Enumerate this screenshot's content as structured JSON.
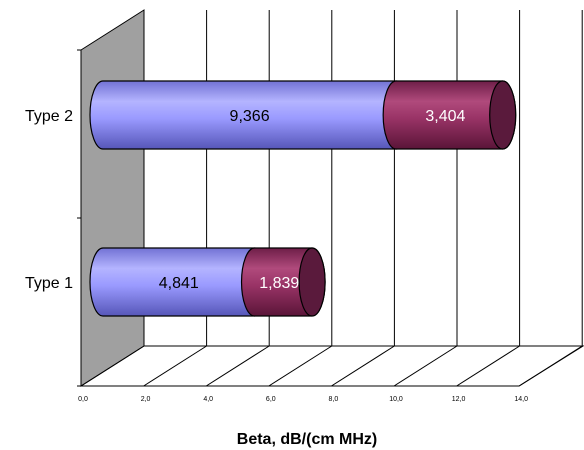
{
  "chart_data": {
    "type": "bar",
    "orientation": "horizontal",
    "style": "3d-cylinder-stacked",
    "title": "",
    "xlabel": "Beta, dB/(cm MHz)",
    "ylabel": "",
    "xlim": [
      0,
      14
    ],
    "x_ticks": [
      "0,0",
      "2,0",
      "4,0",
      "6,0",
      "8,0",
      "10,0",
      "12,0",
      "14,0"
    ],
    "categories": [
      "Type 1",
      "Type 2"
    ],
    "series": [
      {
        "values": [
          4.841,
          9.366
        ],
        "labels": [
          "4,841",
          "9,366"
        ],
        "color": "#9999ff",
        "label_color": "#000000"
      },
      {
        "values": [
          1.839,
          3.404
        ],
        "labels": [
          "1,839",
          "3,404"
        ],
        "color": "#993366",
        "label_color": "#ffffff"
      }
    ],
    "grid": true,
    "legend": "none",
    "wall_color": "#a0a0a0"
  }
}
